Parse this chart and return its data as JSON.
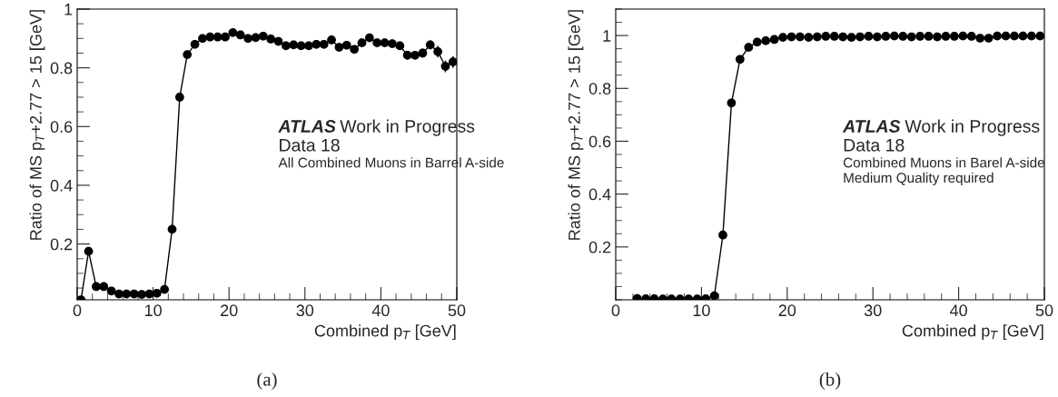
{
  "chart_data": [
    {
      "type": "line",
      "marker": "circle",
      "xlabel": "Combined p$_{T}$ [GeV]",
      "ylabel": "Ratio of MS p$_{T}$+2.77 > 15 [GeV]",
      "x": [
        0.5,
        1.5,
        2.5,
        3.5,
        4.5,
        5.5,
        6.5,
        7.5,
        8.5,
        9.5,
        10.5,
        11.5,
        12.5,
        13.5,
        14.5,
        15.5,
        16.5,
        17.5,
        18.5,
        19.5,
        20.5,
        21.5,
        22.5,
        23.5,
        24.5,
        25.5,
        26.5,
        27.5,
        28.5,
        29.5,
        30.5,
        31.5,
        32.5,
        33.5,
        34.5,
        35.5,
        36.5,
        37.5,
        38.5,
        39.5,
        40.5,
        41.5,
        42.5,
        43.5,
        44.5,
        45.5,
        46.5,
        47.5,
        48.5,
        49.5
      ],
      "series": [
        {
          "color": "#000000",
          "values": [
            0.01,
            0.175,
            0.055,
            0.055,
            0.04,
            0.03,
            0.03,
            0.03,
            0.028,
            0.03,
            0.032,
            0.045,
            0.25,
            0.7,
            0.845,
            0.88,
            0.9,
            0.905,
            0.905,
            0.905,
            0.92,
            0.912,
            0.9,
            0.903,
            0.908,
            0.898,
            0.89,
            0.875,
            0.878,
            0.875,
            0.875,
            0.88,
            0.88,
            0.895,
            0.87,
            0.877,
            0.863,
            0.885,
            0.902,
            0.885,
            0.885,
            0.882,
            0.875,
            0.843,
            0.843,
            0.85,
            0.878,
            0.855,
            0.805,
            0.82
          ],
          "errors": [
            null,
            null,
            null,
            null,
            null,
            null,
            null,
            null,
            null,
            null,
            null,
            null,
            null,
            null,
            null,
            null,
            null,
            null,
            null,
            null,
            null,
            null,
            null,
            null,
            null,
            null,
            null,
            null,
            null,
            null,
            null,
            null,
            null,
            null,
            null,
            null,
            null,
            null,
            null,
            null,
            null,
            null,
            null,
            0.015,
            0.015,
            0.015,
            0.015,
            0.02,
            0.02,
            0.02
          ]
        }
      ],
      "xlim": [
        0,
        50
      ],
      "ylim": [
        0.01,
        1
      ],
      "xticks": [
        0,
        10,
        20,
        30,
        40,
        50
      ],
      "yticks": [
        0.2,
        0.4,
        0.6,
        0.8,
        1
      ],
      "annotations": [
        "ATLAS Work in Progress",
        "Data 18",
        "All Combined Muons in Barrel A-side",
        "(a)"
      ]
    },
    {
      "type": "line",
      "marker": "circle",
      "xlabel": "Combined p$_{T}$ [GeV]",
      "ylabel": "Ratio of MS p$_{T}$+2.77 > 15 [GeV]",
      "x": [
        2.5,
        3.5,
        4.5,
        5.5,
        6.5,
        7.5,
        8.5,
        9.5,
        10.5,
        11.5,
        12.5,
        13.5,
        14.5,
        15.5,
        16.5,
        17.5,
        18.5,
        19.5,
        20.5,
        21.5,
        22.5,
        23.5,
        24.5,
        25.5,
        26.5,
        27.5,
        28.5,
        29.5,
        30.5,
        31.5,
        32.5,
        33.5,
        34.5,
        35.5,
        36.5,
        37.5,
        38.5,
        39.5,
        40.5,
        41.5,
        42.5,
        43.5,
        44.5,
        45.5,
        46.5,
        47.5,
        48.5,
        49.5
      ],
      "series": [
        {
          "color": "#000000",
          "values": [
            0.005,
            0.004,
            0.004,
            0.003,
            0.003,
            0.003,
            0.003,
            0.003,
            0.004,
            0.015,
            0.245,
            0.745,
            0.91,
            0.955,
            0.975,
            0.98,
            0.985,
            0.993,
            0.995,
            0.995,
            0.993,
            0.995,
            0.997,
            0.997,
            0.995,
            0.993,
            0.995,
            0.997,
            0.995,
            0.997,
            0.998,
            0.997,
            0.995,
            0.997,
            0.997,
            0.995,
            0.997,
            0.997,
            0.998,
            0.997,
            0.99,
            0.99,
            0.998,
            0.998,
            0.998,
            0.998,
            0.998,
            0.998
          ]
        }
      ],
      "xlim": [
        0,
        50
      ],
      "ylim": [
        0,
        1.1
      ],
      "xticks": [
        0,
        10,
        20,
        30,
        40,
        50
      ],
      "yticks": [
        0.2,
        0.4,
        0.6,
        0.8,
        1
      ],
      "annotations": [
        "ATLAS Work in Progress",
        "Data 18",
        "Combined Muons in Barel A-side",
        "Medium Quality required",
        "(b)"
      ]
    }
  ]
}
